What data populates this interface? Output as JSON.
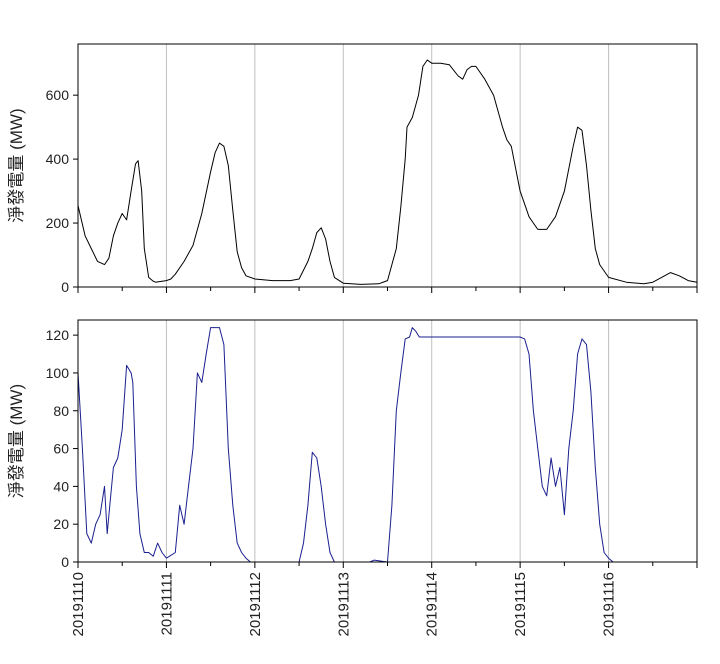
{
  "chart_data": [
    {
      "type": "line",
      "ylabel": "淨發電量 (MW)",
      "xlabel": "",
      "xlim": [
        "20191110",
        "20191117"
      ],
      "ylim": [
        0,
        760
      ],
      "yticks": [
        0,
        200,
        400,
        600
      ],
      "vgrid_dates": [
        "20191111",
        "20191112",
        "20191113",
        "20191114",
        "20191115",
        "20191116"
      ],
      "color": "#000000",
      "series": [
        {
          "x": [
            0.0,
            0.08,
            0.15,
            0.22,
            0.3,
            0.35,
            0.4,
            0.45,
            0.5,
            0.55,
            0.6,
            0.65,
            0.68,
            0.72,
            0.75,
            0.8,
            0.85,
            0.88,
            0.9,
            1.0,
            1.05,
            1.1,
            1.2,
            1.3,
            1.4,
            1.5,
            1.55,
            1.6,
            1.65,
            1.7,
            1.75,
            1.8,
            1.85,
            1.9,
            2.0,
            2.2,
            2.4,
            2.5,
            2.6,
            2.65,
            2.7,
            2.75,
            2.8,
            2.85,
            2.9,
            3.0,
            3.2,
            3.4,
            3.5,
            3.6,
            3.65,
            3.7,
            3.72,
            3.78,
            3.85,
            3.9,
            3.95,
            4.0,
            4.1,
            4.2,
            4.3,
            4.35,
            4.4,
            4.45,
            4.5,
            4.6,
            4.7,
            4.8,
            4.85,
            4.9,
            5.0,
            5.05,
            5.1,
            5.15,
            5.2,
            5.3,
            5.4,
            5.5,
            5.6,
            5.65,
            5.7,
            5.75,
            5.8,
            5.85,
            5.9,
            6.0,
            6.2,
            6.4,
            6.5,
            6.6,
            6.7,
            6.8,
            6.9,
            7.0
          ],
          "y": [
            255,
            160,
            120,
            80,
            70,
            90,
            160,
            200,
            230,
            210,
            300,
            385,
            395,
            300,
            120,
            30,
            18,
            15,
            16,
            20,
            25,
            40,
            80,
            130,
            230,
            360,
            420,
            450,
            440,
            380,
            240,
            110,
            60,
            35,
            25,
            20,
            20,
            25,
            80,
            120,
            170,
            185,
            150,
            80,
            30,
            12,
            8,
            10,
            20,
            120,
            250,
            400,
            500,
            530,
            600,
            690,
            710,
            700,
            700,
            695,
            660,
            650,
            680,
            690,
            690,
            650,
            600,
            500,
            460,
            440,
            300,
            260,
            220,
            200,
            180,
            180,
            220,
            300,
            440,
            500,
            490,
            380,
            240,
            120,
            70,
            30,
            15,
            10,
            15,
            30,
            45,
            35,
            20,
            15
          ]
        }
      ]
    },
    {
      "type": "line",
      "ylabel": "淨發電量 (MW)",
      "xlabel": "",
      "xlim": [
        "20191110",
        "20191117"
      ],
      "ylim": [
        0,
        128
      ],
      "yticks": [
        0,
        20,
        40,
        60,
        80,
        100,
        120
      ],
      "vgrid_dates": [
        "20191111",
        "20191112",
        "20191113",
        "20191114",
        "20191115",
        "20191116"
      ],
      "xtick_labels": [
        "20191110",
        "20191111",
        "20191112",
        "20191113",
        "20191114",
        "20191115",
        "20191116"
      ],
      "color": "#1a1f8f",
      "series": [
        {
          "x": [
            0.0,
            0.05,
            0.1,
            0.15,
            0.2,
            0.25,
            0.3,
            0.33,
            0.36,
            0.4,
            0.45,
            0.5,
            0.55,
            0.6,
            0.62,
            0.66,
            0.7,
            0.75,
            0.8,
            0.85,
            0.9,
            0.95,
            1.0,
            1.1,
            1.15,
            1.2,
            1.25,
            1.3,
            1.35,
            1.4,
            1.45,
            1.5,
            1.55,
            1.6,
            1.65,
            1.7,
            1.75,
            1.8,
            1.85,
            1.9,
            1.95,
            2.0,
            2.5,
            2.55,
            2.6,
            2.65,
            2.7,
            2.75,
            2.8,
            2.85,
            2.9,
            2.95,
            3.0,
            3.3,
            3.35,
            3.5,
            3.55,
            3.6,
            3.65,
            3.7,
            3.75,
            3.78,
            3.82,
            3.86,
            3.9,
            4.0,
            4.2,
            4.4,
            4.6,
            4.8,
            5.0,
            5.05,
            5.1,
            5.15,
            5.2,
            5.25,
            5.3,
            5.35,
            5.4,
            5.45,
            5.5,
            5.55,
            5.6,
            5.65,
            5.7,
            5.75,
            5.8,
            5.85,
            5.9,
            5.95,
            6.0,
            6.05
          ],
          "y": [
            100,
            60,
            15,
            10,
            20,
            25,
            40,
            15,
            30,
            50,
            55,
            70,
            104,
            100,
            95,
            40,
            15,
            5,
            5,
            3,
            10,
            5,
            2,
            5,
            30,
            20,
            40,
            60,
            100,
            95,
            110,
            124,
            124,
            124,
            115,
            60,
            30,
            10,
            5,
            2,
            0,
            0,
            0,
            10,
            30,
            58,
            55,
            40,
            20,
            5,
            0,
            0,
            0,
            0,
            1,
            0,
            30,
            80,
            100,
            118,
            119,
            124,
            122,
            119,
            119,
            119,
            119,
            119,
            119,
            119,
            119,
            118,
            110,
            80,
            60,
            40,
            35,
            55,
            40,
            50,
            25,
            60,
            80,
            110,
            118,
            115,
            90,
            50,
            20,
            5,
            2,
            0
          ]
        }
      ]
    }
  ]
}
